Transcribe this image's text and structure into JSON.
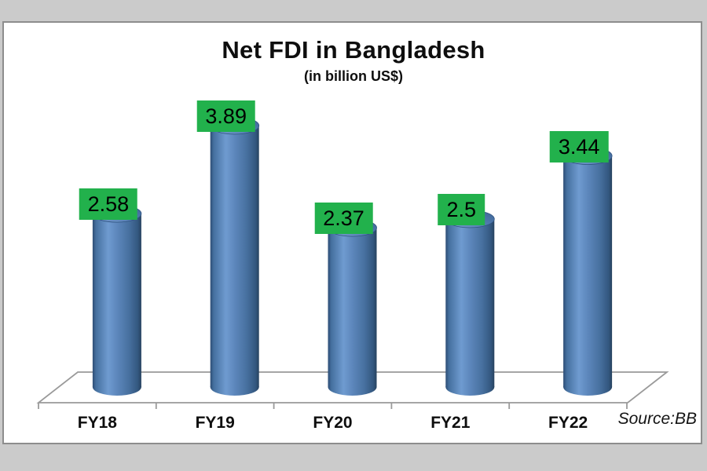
{
  "chart_data": {
    "type": "bar",
    "subtype": "cylinder-3d",
    "title": "Net FDI in Bangladesh",
    "subtitle": "(in billion US$)",
    "categories": [
      "FY18",
      "FY19",
      "FY20",
      "FY21",
      "FY22"
    ],
    "values": [
      2.58,
      3.89,
      2.37,
      2.5,
      3.44
    ],
    "xlabel": "",
    "ylabel": "",
    "ylim": [
      0,
      4.5
    ],
    "grid": false,
    "legend": false,
    "data_labels": true,
    "source": "Source:BB",
    "colors": {
      "bar_fill": "#4f81bd",
      "bar_highlight": "#6f9bd0",
      "bar_shadow": "#27425f",
      "data_label_bg": "#22b14c",
      "data_label_text": "#000000",
      "floor_stroke": "#9a9a9a",
      "plot_background": "#ffffff",
      "frame_background": "#cbcbcb",
      "text": "#0e0e0e"
    }
  }
}
